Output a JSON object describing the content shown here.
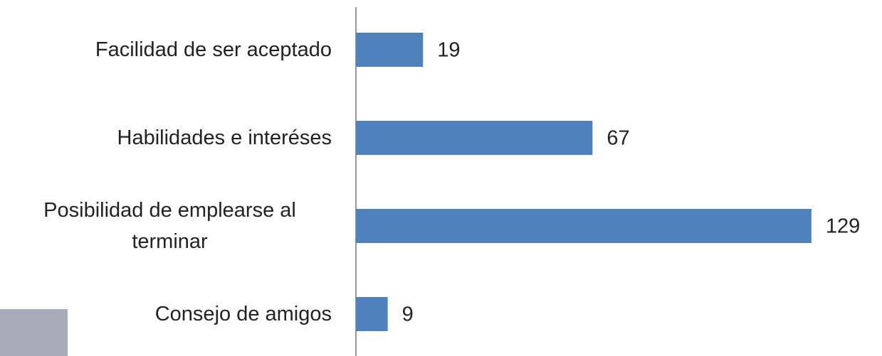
{
  "chart_data": {
    "type": "bar",
    "orientation": "horizontal",
    "categories": [
      "Facilidad de ser aceptado",
      "Habilidades e interéses",
      "Posibilidad de emplearse al terminar",
      "Consejo de amigos"
    ],
    "values": [
      19,
      67,
      129,
      9
    ],
    "color": "#4f81bd"
  }
}
